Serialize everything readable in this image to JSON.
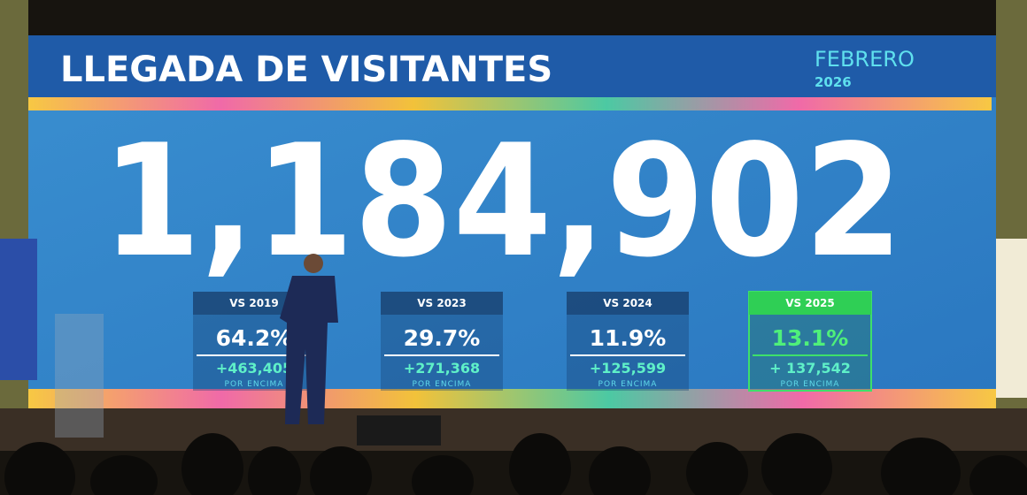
{
  "header": {
    "title": "LLEGADA DE VISITANTES",
    "month": "FEBRERO",
    "year": "2026"
  },
  "total": "1,184,902",
  "comparisons": [
    {
      "label": "VS 2019",
      "percent": "64.2%",
      "delta": "+463,405",
      "note": "POR ENCIMA"
    },
    {
      "label": "VS 2023",
      "percent": "29.7%",
      "delta": "+271,368",
      "note": "POR ENCIMA"
    },
    {
      "label": "VS 2024",
      "percent": "11.9%",
      "delta": "+125,599",
      "note": "POR ENCIMA"
    },
    {
      "label": "VS 2025",
      "percent": "13.1%",
      "delta": "+ 137,542",
      "note": "POR ENCIMA"
    }
  ]
}
